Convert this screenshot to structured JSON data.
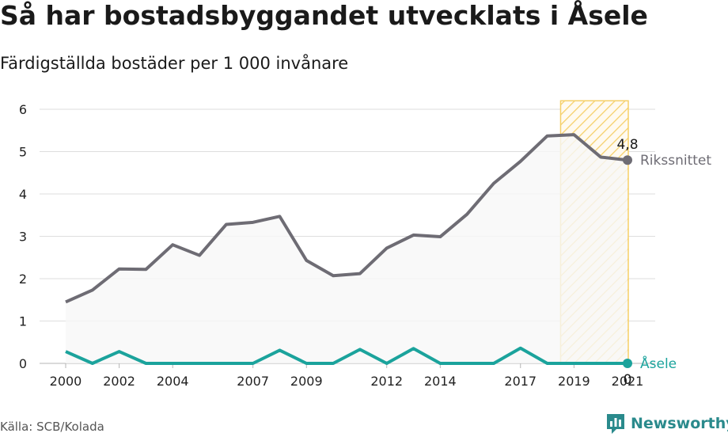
{
  "header": {
    "title": "Så har bostadsbyggandet utvecklats i Åsele",
    "subtitle": "Färdigställda bostäder per 1 000 invånare"
  },
  "footer": {
    "source": "Källa: SCB/Kolada",
    "brand": "Newsworthy"
  },
  "chart_data": {
    "type": "line",
    "x": [
      2000,
      2001,
      2002,
      2003,
      2004,
      2005,
      2006,
      2007,
      2008,
      2009,
      2010,
      2011,
      2012,
      2013,
      2014,
      2015,
      2016,
      2017,
      2018,
      2019,
      2020,
      2021
    ],
    "x_tick_labels": [
      "2000",
      "2002",
      "2004",
      "2007",
      "2009",
      "2012",
      "2014",
      "2017",
      "2019",
      "2021"
    ],
    "x_tick_values": [
      2000,
      2002,
      2004,
      2007,
      2009,
      2012,
      2014,
      2017,
      2019,
      2021
    ],
    "y_ticks": [
      0,
      1,
      2,
      3,
      4,
      5,
      6
    ],
    "ylim": [
      0,
      6.2
    ],
    "grid": true,
    "highlight_range": [
      2018.5,
      2021
    ],
    "series": [
      {
        "name": "Rikssnittet",
        "color": "#6e6c74",
        "values": [
          1.45,
          1.73,
          2.23,
          2.22,
          2.8,
          2.55,
          3.28,
          3.33,
          3.47,
          2.43,
          2.07,
          2.12,
          2.72,
          3.03,
          2.99,
          3.52,
          4.25,
          4.77,
          5.37,
          5.4,
          4.87,
          4.8
        ],
        "end_label": "4,8",
        "area_fill": "#f7f7f8"
      },
      {
        "name": "Åsele",
        "color": "#1ba39c",
        "values": [
          0.28,
          0,
          0.28,
          0,
          0,
          0,
          0,
          0,
          0.31,
          0,
          0,
          0.33,
          0,
          0.35,
          0,
          0,
          0,
          0.36,
          0,
          0,
          0,
          0
        ],
        "end_label": "0"
      }
    ],
    "highlight_color": "#f5cf67"
  }
}
